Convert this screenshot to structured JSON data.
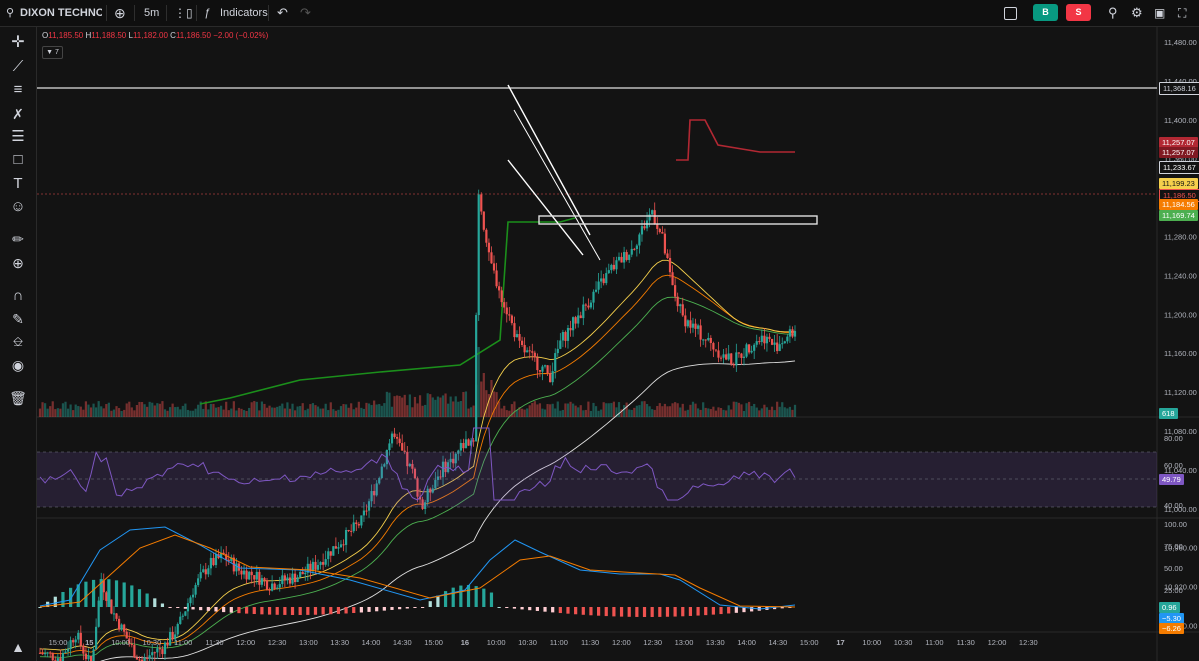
{
  "toolbar": {
    "symbol": "DIXON TECHNOLOGI",
    "interval": "5m",
    "indicators_label": "Indicators",
    "buy_label": "B",
    "sell_label": "S"
  },
  "legend": {
    "o_key": "O",
    "o_val": "11,185.50",
    "h_key": "H",
    "h_val": "11,188.50",
    "l_key": "L",
    "l_val": "11,182.00",
    "c_key": "C",
    "c_val": "11,186.50",
    "change": "−2.00 (−0.02%)",
    "indicator_count": "7"
  },
  "price_axis": [
    "11,480.00",
    "11,440.00",
    "11,400.00",
    "11,360.00",
    "11,320.00",
    "11,280.00",
    "11,240.00",
    "11,200.00",
    "11,160.00",
    "11,120.00",
    "11,080.00",
    "11,040.00",
    "11,000.00",
    "10,960.00",
    "10,920.00",
    "10,880.00",
    "10,840.00"
  ],
  "price_tags": {
    "hline": "11,368.16",
    "red1": "11,257.07",
    "red2": "11,257.07",
    "white": "11,233.67",
    "yellow": "11,199.23",
    "current": "11,186.50",
    "orange": "11,184.56",
    "green": "11,169.74",
    "volume": "618"
  },
  "rsi": {
    "axis": [
      "80.00",
      "60.00",
      "40.00"
    ],
    "value": "49.79"
  },
  "oscillator": {
    "axis": [
      "100.00",
      "75.00",
      "50.00",
      "25.00"
    ],
    "values": [
      "0.96",
      "−5.30",
      "−6.26"
    ]
  },
  "time_axis": [
    "15:00",
    "15",
    "10:00",
    "10:30",
    "11:00",
    "11:30",
    "12:00",
    "12:30",
    "13:00",
    "13:30",
    "14:00",
    "14:30",
    "15:00",
    "16",
    "10:00",
    "10:30",
    "11:00",
    "11:30",
    "12:00",
    "12:30",
    "13:00",
    "13:30",
    "14:00",
    "14:30",
    "15:00",
    "17",
    "10:00",
    "10:30",
    "11:00",
    "11:30",
    "12:00",
    "12:30"
  ],
  "colors": {
    "up": "#26a69a",
    "down": "#ef5350",
    "rsi": "#7e57c2",
    "accent": "#2962ff"
  }
}
